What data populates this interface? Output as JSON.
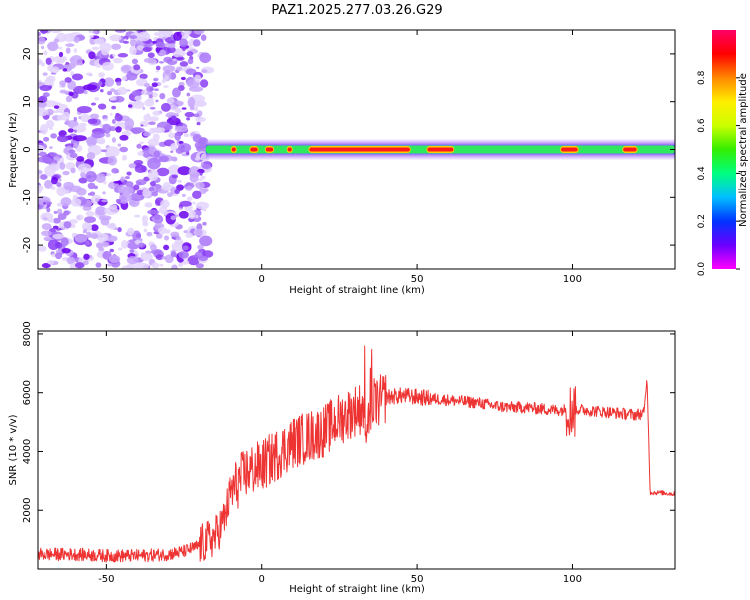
{
  "title": "PAZ1.2025.277.03.26.G29",
  "colors": {
    "snr_line": "#ee3333",
    "background": "#ffffff",
    "axes": "#000000",
    "noise_palette": [
      "#6a00ee",
      "#8a3cf5",
      "#a874f8",
      "#c7a6fb",
      "#e3d4fd"
    ],
    "colorbar_stops": [
      "#ff00ff",
      "#6a00ff",
      "#0033ff",
      "#00bfff",
      "#00ff80",
      "#33ee00",
      "#ccff00",
      "#ffee00",
      "#ff8800",
      "#ff0000",
      "#ff0066"
    ]
  },
  "chart_data": [
    {
      "id": "spectrogram",
      "type": "heatmap",
      "title": "PAZ1.2025.277.03.26.G29",
      "xlabel": "Height of straight line (km)",
      "ylabel": "Frequency (Hz)",
      "xlim": [
        -72,
        133
      ],
      "ylim": [
        -25,
        25
      ],
      "xticks": [
        -50,
        0,
        50,
        100
      ],
      "yticks": [
        -20,
        -10,
        0,
        10,
        20
      ],
      "noise_region_x": [
        -72,
        -18
      ],
      "signal_track": {
        "x_start": -18,
        "x_end": 133,
        "center_frequency_hz": 0,
        "peak_segments_x": [
          [
            -10,
            -8
          ],
          [
            -4,
            -1
          ],
          [
            1,
            4
          ],
          [
            8,
            10
          ],
          [
            15,
            48
          ],
          [
            53,
            62
          ],
          [
            96,
            102
          ],
          [
            116,
            121
          ]
        ]
      },
      "colorbar": {
        "label": "Normalized spectral amplitude",
        "range": [
          0,
          1
        ],
        "ticks": [
          "0.0",
          "0.2",
          "0.4",
          "0.6",
          "0.8"
        ]
      }
    },
    {
      "id": "snr",
      "type": "line",
      "xlabel": "Height of straight line (km)",
      "ylabel": "SNR (10 * v/v)",
      "xlim": [
        -72,
        133
      ],
      "ylim": [
        0,
        8100
      ],
      "xticks": [
        -50,
        0,
        50,
        100
      ],
      "yticks": [
        2000,
        4000,
        6000,
        8000
      ],
      "series": [
        {
          "name": "SNR",
          "x": [
            -72,
            -60,
            -50,
            -40,
            -30,
            -25,
            -20,
            -15,
            -12,
            -10,
            -5,
            0,
            5,
            10,
            15,
            20,
            25,
            30,
            33,
            35,
            38,
            40,
            45,
            50,
            55,
            60,
            65,
            70,
            75,
            80,
            85,
            90,
            95,
            100,
            105,
            110,
            115,
            120,
            123,
            124,
            125,
            126,
            128,
            133
          ],
          "y": [
            500,
            500,
            450,
            450,
            500,
            600,
            800,
            1100,
            1700,
            2600,
            3300,
            3500,
            3900,
            4300,
            4500,
            4700,
            5100,
            5400,
            5500,
            5600,
            5700,
            5850,
            5900,
            5850,
            5800,
            5750,
            5700,
            5650,
            5550,
            5500,
            5500,
            5450,
            5400,
            5450,
            5400,
            5350,
            5300,
            5250,
            5300,
            6500,
            2600,
            2600,
            2600,
            2550
          ]
        }
      ]
    }
  ]
}
